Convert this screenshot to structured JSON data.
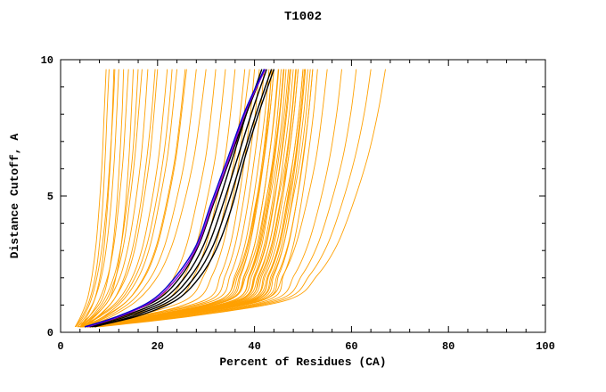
{
  "chart_data": {
    "type": "line",
    "title": "T1002",
    "xlabel": "Percent of Residues (CA)",
    "ylabel": "Distance Cutoff, A",
    "xlim": [
      0,
      100
    ],
    "ylim": [
      0,
      10
    ],
    "x_major_ticks": [
      0,
      20,
      40,
      60,
      80,
      100
    ],
    "y_major_ticks": [
      0,
      5,
      10
    ],
    "x_minor_step": 4,
    "y_minor_step": 1,
    "grid": "off",
    "legend": "none",
    "colors": {
      "orange": "#FFA000",
      "black": "#000000",
      "blue": "#0000CD",
      "purple": "#9400D3"
    },
    "y_levels": [
      0.2,
      0.6,
      1.2,
      2.1,
      3.2,
      4.7,
      6.4,
      8.1,
      9.65
    ],
    "series": [
      {
        "name": "model-curves-orange",
        "color": "orange",
        "width": 0.9,
        "curves_x": [
          [
            3.5,
            16,
            30,
            33,
            35,
            36.6,
            38,
            39.2,
            40
          ],
          [
            4,
            17,
            32,
            35,
            37,
            38.6,
            40,
            41.2,
            42
          ],
          [
            4.5,
            18,
            33,
            36,
            38,
            39.6,
            41,
            42.2,
            43
          ],
          [
            5,
            19,
            34,
            37,
            39,
            40.6,
            42,
            43.2,
            44
          ],
          [
            4,
            19,
            35,
            38,
            40,
            41.6,
            43,
            44.2,
            45
          ],
          [
            5,
            20,
            36,
            39,
            41,
            42.6,
            44,
            45.2,
            46
          ],
          [
            6,
            21,
            37,
            40,
            42,
            43.6,
            45,
            46.2,
            47
          ],
          [
            4,
            21,
            38,
            41,
            43,
            44.6,
            46,
            47.2,
            48
          ],
          [
            5,
            22,
            39,
            42,
            44,
            45.6,
            47,
            48.2,
            49
          ],
          [
            6,
            23,
            40,
            43,
            45,
            46.6,
            48,
            49.2,
            50
          ],
          [
            5,
            23,
            41,
            44,
            46,
            47.6,
            49,
            50.2,
            51
          ],
          [
            6,
            24,
            42,
            45,
            47,
            48.6,
            50,
            51.2,
            52
          ],
          [
            7,
            25,
            43,
            46,
            48,
            49.6,
            51,
            52.2,
            53
          ],
          [
            4,
            17,
            31,
            34,
            36,
            37.6,
            39,
            40.2,
            41
          ],
          [
            5,
            19,
            33,
            36.3,
            38.5,
            40.2,
            42,
            43.2,
            44
          ],
          [
            6,
            20,
            35,
            38.3,
            40.5,
            42.2,
            44,
            45.2,
            46
          ],
          [
            4.5,
            21,
            37,
            40.2,
            42.3,
            43.9,
            45.5,
            46.7,
            47.5
          ],
          [
            5.5,
            22,
            38,
            41.3,
            43.5,
            45.2,
            47,
            48.2,
            49
          ],
          [
            6.5,
            23,
            39.5,
            42.8,
            45,
            46.7,
            48.5,
            49.7,
            50.5
          ],
          [
            5,
            23,
            40.5,
            43.8,
            46,
            47.7,
            49.5,
            50.7,
            51.5
          ],
          [
            4,
            20,
            36,
            38.9,
            40.8,
            42.3,
            43.8,
            44.8,
            45.5
          ],
          [
            5,
            20,
            34.5,
            37.2,
            39,
            40.4,
            41.9,
            42.9,
            43.5
          ],
          [
            6,
            21,
            36.5,
            39.5,
            41.5,
            43,
            44.7,
            45.8,
            46.5
          ],
          [
            4,
            21.5,
            39,
            42.3,
            44.5,
            46.2,
            48,
            49.2,
            50
          ],
          [
            5,
            21,
            37.5,
            40.8,
            43,
            44.7,
            46.5,
            47.7,
            48.5
          ],
          [
            4.2,
            18.5,
            33.5,
            36.6,
            38.7,
            40.3,
            41.7,
            42.8,
            43.6
          ],
          [
            5.2,
            20.5,
            36,
            39.1,
            41.2,
            42.8,
            44.2,
            45.3,
            46.1
          ],
          [
            6.2,
            22.5,
            38.5,
            41.6,
            43.7,
            45.3,
            46.7,
            47.8,
            48.6
          ],
          [
            4.8,
            21.8,
            39.8,
            43,
            45.2,
            46.9,
            48.4,
            49.5,
            50.3
          ],
          [
            5.8,
            23.5,
            41.5,
            44.7,
            46.9,
            48.6,
            50.1,
            51.2,
            52
          ],
          [
            4.4,
            19.3,
            34.8,
            37.9,
            40,
            41.6,
            43,
            44.1,
            44.9
          ],
          [
            5.6,
            21.2,
            37.2,
            40.3,
            42.4,
            44,
            45.4,
            46.5,
            47.3
          ],
          [
            6.4,
            23.2,
            40.4,
            43.5,
            45.6,
            47.2,
            48.6,
            49.7,
            50.5
          ],
          [
            3,
            4.5,
            6,
            7.2,
            8,
            8.7,
            9.2,
            9.6,
            10
          ],
          [
            3.5,
            5.2,
            7,
            8.5,
            9.5,
            10.4,
            11.1,
            11.6,
            12
          ],
          [
            4,
            6,
            8,
            9.8,
            11,
            12,
            12.9,
            13.5,
            14
          ],
          [
            4,
            6.5,
            9,
            11.1,
            12.5,
            13.7,
            14.8,
            15.5,
            16
          ],
          [
            4.5,
            7.2,
            10,
            12.4,
            14,
            15.4,
            16.6,
            17.4,
            18
          ],
          [
            5,
            8,
            11,
            13.7,
            15.5,
            17,
            18.4,
            19.3,
            20
          ],
          [
            4,
            8,
            12,
            15,
            17,
            18.7,
            20.2,
            21.2,
            22
          ],
          [
            5,
            9,
            13,
            16.3,
            18.5,
            20.3,
            22,
            23.1,
            24
          ],
          [
            4.5,
            9.2,
            14,
            17.6,
            20,
            22,
            23.8,
            25,
            26
          ],
          [
            5,
            10,
            15,
            18.9,
            21.5,
            23.7,
            25.7,
            27,
            28
          ],
          [
            5.5,
            10.7,
            16,
            20.2,
            23,
            25.4,
            27.5,
            28.9,
            30
          ],
          [
            4,
            7,
            10,
            11.5,
            12.5,
            13.4,
            14.1,
            14.6,
            15
          ],
          [
            4,
            5.5,
            7,
            8.2,
            9,
            9.7,
            10.3,
            10.7,
            11
          ],
          [
            3.5,
            6,
            8.5,
            9.9,
            10.8,
            11.6,
            12.2,
            12.7,
            13
          ],
          [
            3,
            4.2,
            5.5,
            6.5,
            7.3,
            8,
            8.6,
            9,
            9.4
          ],
          [
            3.2,
            4.8,
            6.3,
            7.6,
            8.6,
            9.5,
            10.2,
            10.8,
            11.2
          ],
          [
            4.2,
            6.8,
            9.5,
            11.5,
            13,
            14.2,
            15.3,
            16.1,
            16.8
          ],
          [
            4.8,
            7.8,
            11,
            13.3,
            15,
            16.5,
            17.8,
            18.8,
            19.5
          ],
          [
            4.2,
            8.3,
            12.5,
            15.6,
            17.8,
            19.6,
            21.2,
            22.3,
            23
          ],
          [
            5.2,
            9.5,
            14,
            17.4,
            19.8,
            21.8,
            23.6,
            24.8,
            25.7
          ],
          [
            4,
            12,
            20,
            23.6,
            26,
            28,
            29.9,
            31.1,
            32
          ],
          [
            5,
            13.5,
            22,
            25.6,
            28,
            30,
            31.9,
            33.1,
            34
          ],
          [
            4.5,
            14,
            24,
            27.6,
            30,
            32,
            33.9,
            35.1,
            36
          ],
          [
            5,
            15.5,
            26,
            29.6,
            32,
            34,
            35.9,
            37.1,
            38
          ],
          [
            6,
            17,
            28,
            31.3,
            33.5,
            35.3,
            36.9,
            37.9,
            39
          ],
          [
            6,
            24,
            42,
            45.9,
            48.5,
            50.7,
            52.7,
            54,
            55
          ],
          [
            7,
            25.5,
            44,
            48.2,
            51,
            53.4,
            55.5,
            57,
            58
          ],
          [
            6,
            25.5,
            45,
            49.8,
            53,
            55.7,
            58.2,
            59.9,
            61
          ],
          [
            7,
            26.5,
            46,
            51.4,
            55,
            58,
            60.7,
            62.7,
            64
          ],
          [
            8,
            27.5,
            47,
            53,
            57,
            60.3,
            63.3,
            65.5,
            67
          ]
        ]
      },
      {
        "name": "reference-curves-black",
        "color": "black",
        "width": 1.4,
        "curves_x": [
          [
            5,
            13,
            21,
            26,
            29.5,
            32.5,
            35.5,
            38.5,
            41.5
          ],
          [
            6,
            14,
            22,
            27,
            30.5,
            33.5,
            36.5,
            39.5,
            42.5
          ],
          [
            7,
            15,
            23,
            28,
            31.5,
            34.5,
            37.5,
            40.5,
            43.5
          ],
          [
            5.5,
            12,
            20,
            25,
            28.5,
            31.5,
            35,
            38.5,
            42
          ],
          [
            6.5,
            16,
            24,
            29,
            32.5,
            35.5,
            38,
            41,
            44
          ]
        ]
      },
      {
        "name": "highlight-curve-purple",
        "color": "purple",
        "width": 1.4,
        "curves_x": [
          [
            5.5,
            12.5,
            19.5,
            24.5,
            28.3,
            31.3,
            34.8,
            38.2,
            42.2
          ]
        ]
      },
      {
        "name": "highlight-curve-blue",
        "color": "blue",
        "width": 1.4,
        "curves_x": [
          [
            5,
            12,
            19,
            24,
            28,
            31,
            34.5,
            38,
            42
          ]
        ]
      }
    ]
  }
}
